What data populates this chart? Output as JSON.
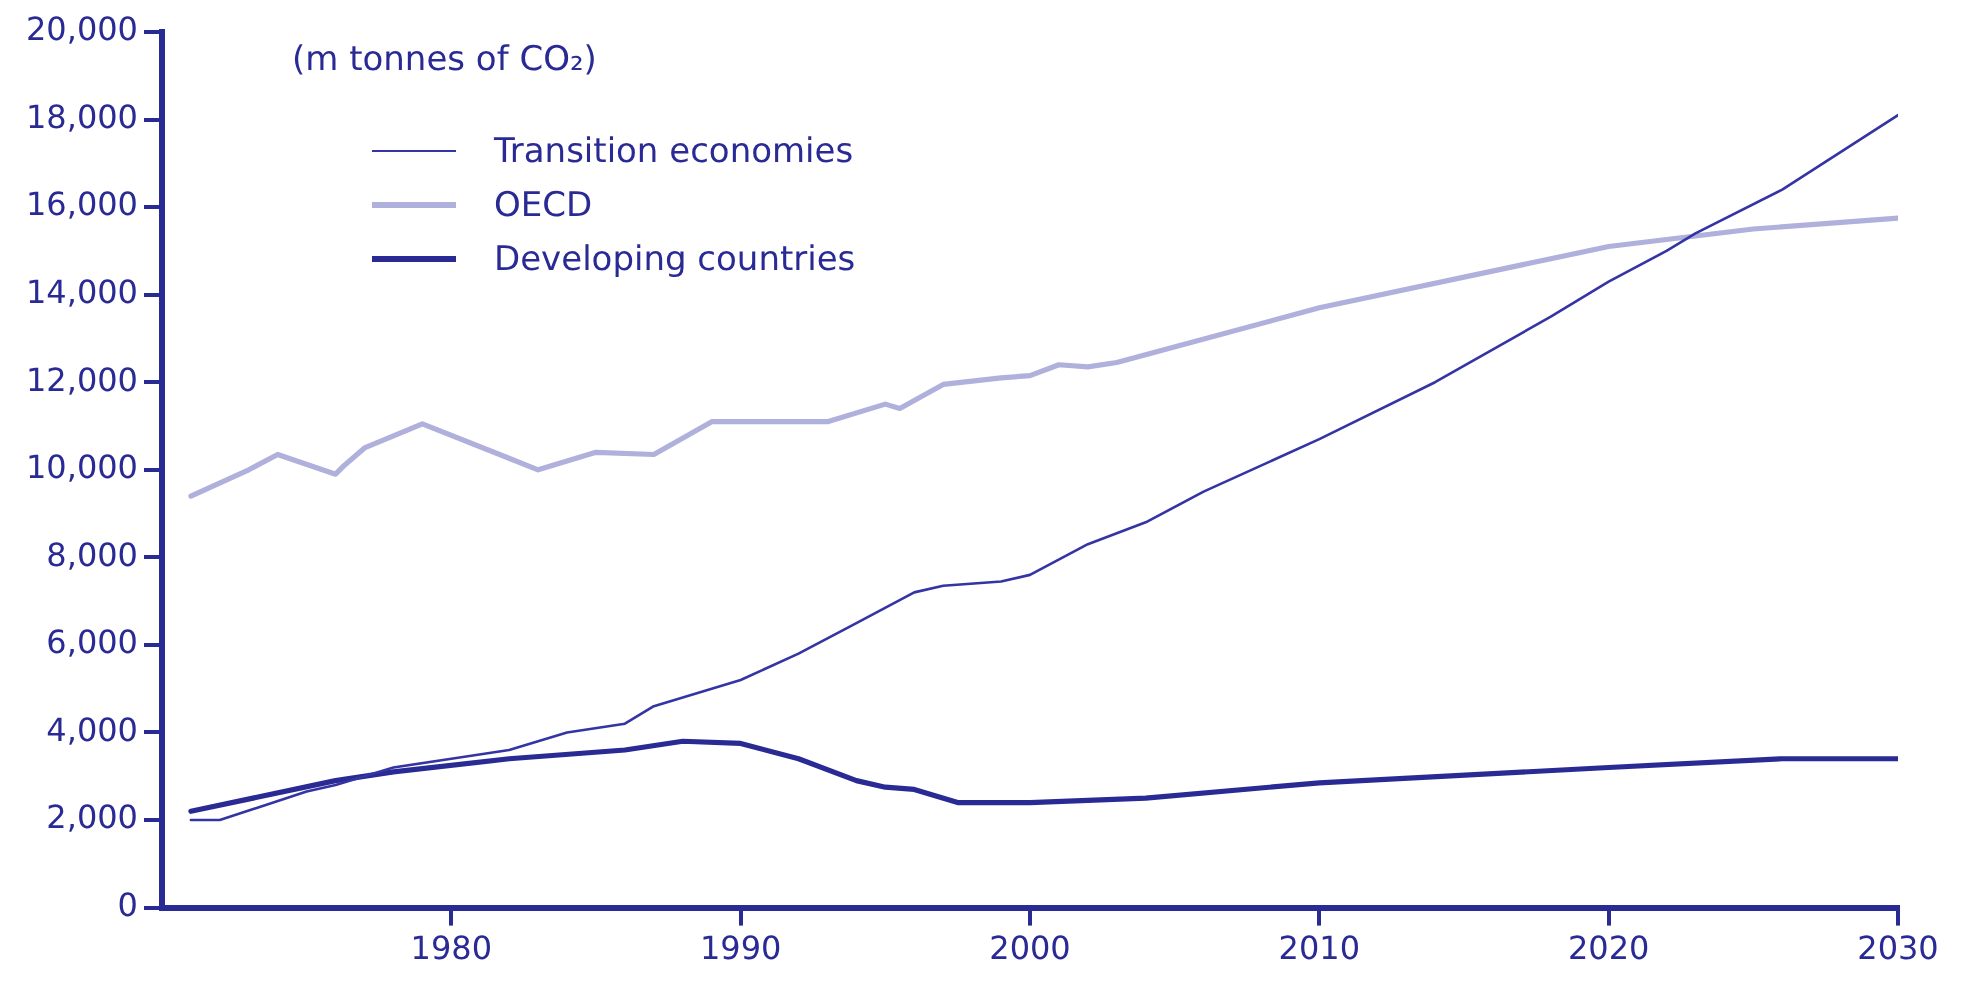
{
  "chart_data": {
    "type": "line",
    "ylabel": "(m tonnes of CO₂)",
    "xlim": [
      1970,
      2030
    ],
    "xticks": [
      1980,
      1990,
      2000,
      2010,
      2020,
      2030
    ],
    "ylim": [
      0,
      20000
    ],
    "yticks": [
      0,
      {
        "value": 2000,
        "label": "2,000"
      },
      {
        "value": 4000,
        "label": "4,000"
      },
      {
        "value": 6000,
        "label": "6,000"
      },
      {
        "value": 8000,
        "label": "8,000"
      },
      {
        "value": 10000,
        "label": "10,000"
      },
      {
        "value": 12000,
        "label": "12,000"
      },
      {
        "value": 14000,
        "label": "14,000"
      },
      {
        "value": 16000,
        "label": "16,000"
      },
      {
        "value": 18000,
        "label": "18,000"
      },
      {
        "value": 20000,
        "label": "20,000"
      }
    ],
    "grid": false,
    "legend": "top left",
    "marker": "none",
    "line_style": "solid",
    "series": [
      {
        "name": "Transition economies",
        "color": "#3434a4",
        "x": [
          1971,
          1972,
          1975,
          1976,
          1978,
          1980,
          1982,
          1984,
          1986,
          1987,
          1990,
          1992,
          1994,
          1996,
          1997,
          1999,
          2000,
          2002,
          2004,
          2006,
          2010,
          2014,
          2018,
          2020,
          2022,
          2023,
          2026,
          2030
        ],
        "values": [
          2000,
          2000,
          2650,
          2800,
          3200,
          3400,
          3600,
          4000,
          4200,
          4600,
          5200,
          5800,
          6500,
          7200,
          7350,
          7450,
          7600,
          8300,
          8800,
          9500,
          10700,
          12000,
          13500,
          14300,
          15000,
          15400,
          16400,
          18100
        ]
      },
      {
        "name": "OECD",
        "color": "#b0b0dc",
        "x": [
          1971,
          1973,
          1974,
          1976,
          1976.3,
          1977,
          1979,
          1983,
          1985,
          1987,
          1989,
          1993,
          1995,
          1995.5,
          1997,
          1999,
          2000,
          2001,
          2002,
          2003,
          2010,
          2020,
          2025,
          2030
        ],
        "values": [
          9400,
          10000,
          10350,
          9900,
          10100,
          10500,
          11050,
          10000,
          10400,
          10350,
          11100,
          11100,
          11500,
          11400,
          11950,
          12100,
          12150,
          12400,
          12350,
          12450,
          13700,
          15100,
          15500,
          15750
        ]
      },
      {
        "name": "Developing countries",
        "color": "#2a2a94",
        "x": [
          1971,
          1976,
          1978,
          1982,
          1986,
          1988,
          1990,
          1992,
          1994,
          1995,
          1996,
          1997.5,
          2000,
          2004,
          2010,
          2020,
          2026,
          2030
        ],
        "values": [
          2200,
          2900,
          3100,
          3400,
          3600,
          3800,
          3750,
          3400,
          2900,
          2750,
          2700,
          2400,
          2400,
          2500,
          2850,
          3200,
          3400,
          3400
        ]
      }
    ]
  }
}
